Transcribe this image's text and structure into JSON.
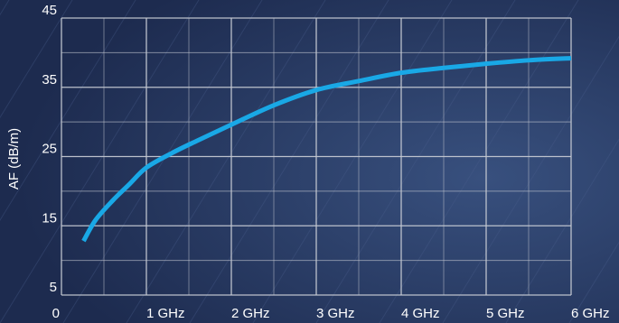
{
  "chart_data": {
    "type": "line",
    "title": "",
    "xlabel": "",
    "ylabel": "AF (dB/m)",
    "xlim": [
      0,
      6
    ],
    "ylim": [
      5,
      45
    ],
    "x_ticks": [
      0,
      1,
      2,
      3,
      4,
      5,
      6
    ],
    "x_tick_labels": [
      "0",
      "1 GHz",
      "2 GHz",
      "3 GHz",
      "4 GHz",
      "5 GHz",
      "6 GHz"
    ],
    "y_ticks": [
      5,
      15,
      25,
      35,
      45
    ],
    "y_tick_labels": [
      "5",
      "15",
      "25",
      "35",
      "45"
    ],
    "grid": true,
    "series": [
      {
        "color": "#19a8e6",
        "x": [
          0.26,
          0.4,
          0.6,
          0.8,
          1.0,
          1.3,
          1.6,
          2.0,
          2.5,
          3.0,
          3.5,
          4.0,
          4.5,
          5.0,
          5.5,
          6.0
        ],
        "y": [
          12.8,
          15.8,
          18.6,
          21.0,
          23.4,
          25.5,
          27.3,
          29.6,
          32.4,
          34.6,
          35.9,
          37.1,
          37.8,
          38.4,
          38.9,
          39.2
        ]
      }
    ]
  },
  "colors": {
    "background": "#1d2b4f",
    "grid": "#c4c8d2",
    "text": "#ffffff"
  }
}
